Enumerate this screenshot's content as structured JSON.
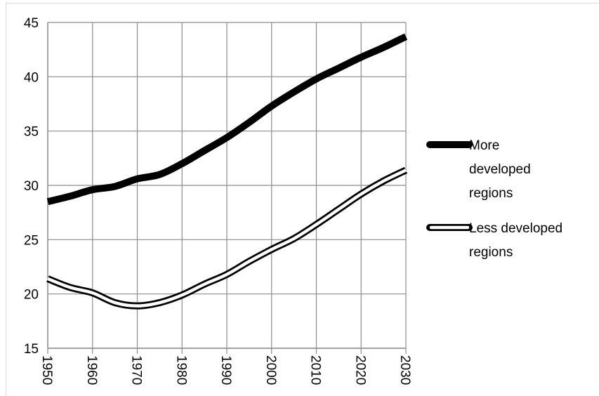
{
  "chart_data": {
    "type": "line",
    "title": "",
    "xlabel": "",
    "ylabel": "",
    "x": [
      1950,
      1955,
      1960,
      1965,
      1970,
      1975,
      1980,
      1985,
      1990,
      1995,
      2000,
      2005,
      2010,
      2015,
      2020,
      2025,
      2030
    ],
    "xlim": [
      1950,
      2030
    ],
    "ylim": [
      15,
      45
    ],
    "x_ticks": [
      "1950",
      "1960",
      "1970",
      "1980",
      "1990",
      "2000",
      "2010",
      "2020",
      "2030"
    ],
    "y_ticks": [
      "15",
      "20",
      "25",
      "30",
      "35",
      "40",
      "45"
    ],
    "grid": true,
    "legend_position": "right",
    "series": [
      {
        "name": "More developed regions",
        "legend_lines": [
          "More",
          "developed",
          "regions"
        ],
        "style": "thick-solid",
        "color": "#000000",
        "values": [
          28.5,
          29.0,
          29.6,
          29.9,
          30.6,
          31.0,
          32.0,
          33.2,
          34.4,
          35.8,
          37.3,
          38.6,
          39.8,
          40.8,
          41.8,
          42.7,
          43.7
        ]
      },
      {
        "name": "Less developed regions",
        "legend_lines": [
          "Less developed",
          "regions"
        ],
        "style": "double-outline",
        "color": "#000000",
        "values": [
          21.4,
          20.6,
          20.1,
          19.2,
          18.9,
          19.2,
          19.9,
          20.9,
          21.8,
          23.0,
          24.1,
          25.1,
          26.4,
          27.8,
          29.2,
          30.4,
          31.4
        ]
      }
    ]
  }
}
